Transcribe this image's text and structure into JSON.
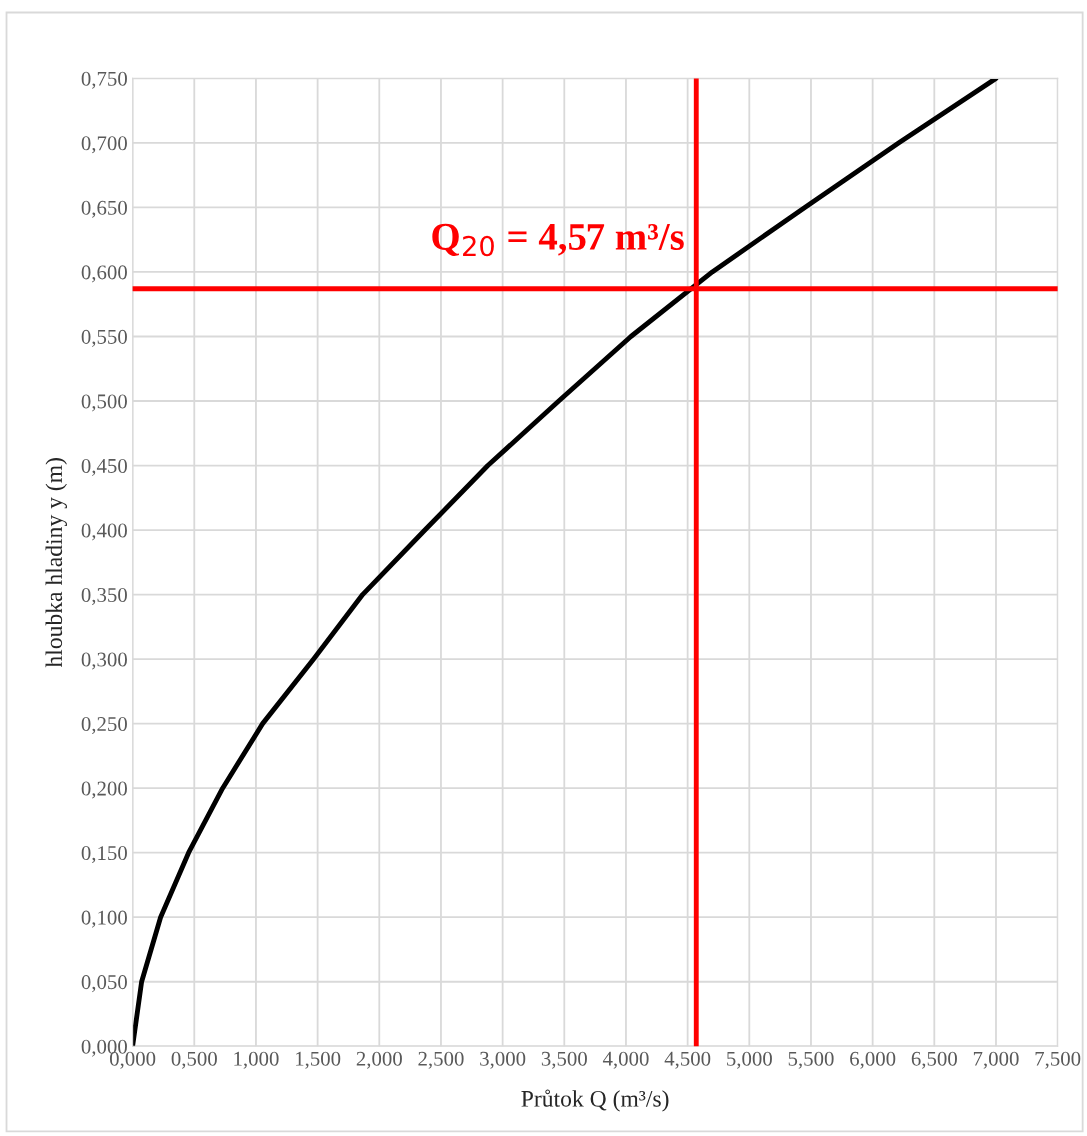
{
  "chart_data": {
    "type": "line",
    "xlabel": "Průtok Q (m³/s)",
    "ylabel": "hloubka hladiny y (m)",
    "x": [
      0,
      0.073,
      0.227,
      0.454,
      0.73,
      1.054,
      1.468,
      1.865,
      2.37,
      2.88,
      3.455,
      4.04,
      4.7,
      5.45,
      6.21,
      7.0
    ],
    "series": [
      {
        "color": "#000000",
        "values": [
          0,
          0.05,
          0.1,
          0.15,
          0.2,
          0.25,
          0.3,
          0.35,
          0.4,
          0.45,
          0.5,
          0.55,
          0.6,
          0.65,
          0.7,
          0.75
        ]
      }
    ],
    "xlim": [
      0,
      7.5
    ],
    "ylim": [
      0,
      0.75
    ],
    "xticks": [
      {
        "value": 0,
        "label": "0,000"
      },
      {
        "value": 0.5,
        "label": "0,500"
      },
      {
        "value": 1,
        "label": "1,000"
      },
      {
        "value": 1.5,
        "label": "1,500"
      },
      {
        "value": 2,
        "label": "2,000"
      },
      {
        "value": 2.5,
        "label": "2,500"
      },
      {
        "value": 3,
        "label": "3,000"
      },
      {
        "value": 3.5,
        "label": "3,500"
      },
      {
        "value": 4,
        "label": "4,000"
      },
      {
        "value": 4.5,
        "label": "4,500"
      },
      {
        "value": 5,
        "label": "5,000"
      },
      {
        "value": 5.5,
        "label": "5,500"
      },
      {
        "value": 6,
        "label": "6,000"
      },
      {
        "value": 6.5,
        "label": "6,500"
      },
      {
        "value": 7,
        "label": "7,000"
      },
      {
        "value": 7.5,
        "label": "7,500"
      }
    ],
    "yticks": [
      {
        "value": 0,
        "label": "0,000"
      },
      {
        "value": 0.05,
        "label": "0,050"
      },
      {
        "value": 0.1,
        "label": "0,100"
      },
      {
        "value": 0.15,
        "label": "0,150"
      },
      {
        "value": 0.2,
        "label": "0,200"
      },
      {
        "value": 0.25,
        "label": "0,250"
      },
      {
        "value": 0.3,
        "label": "0,300"
      },
      {
        "value": 0.35,
        "label": "0,350"
      },
      {
        "value": 0.4,
        "label": "0,400"
      },
      {
        "value": 0.45,
        "label": "0,450"
      },
      {
        "value": 0.5,
        "label": "0,500"
      },
      {
        "value": 0.55,
        "label": "0,550"
      },
      {
        "value": 0.6,
        "label": "0,600"
      },
      {
        "value": 0.65,
        "label": "0,650"
      },
      {
        "value": 0.7,
        "label": "0,700"
      },
      {
        "value": 0.75,
        "label": "0,750"
      }
    ],
    "grid": true,
    "ref_lines": [
      {
        "axis": "x",
        "value": 4.57,
        "color": "#ff0000"
      },
      {
        "axis": "y",
        "value": 0.587,
        "color": "#ff0000"
      }
    ],
    "annotations": [
      {
        "text": "Q$_{20}$ = 4,57 m³/s",
        "x": 4.57,
        "y": 0.587
      }
    ]
  }
}
